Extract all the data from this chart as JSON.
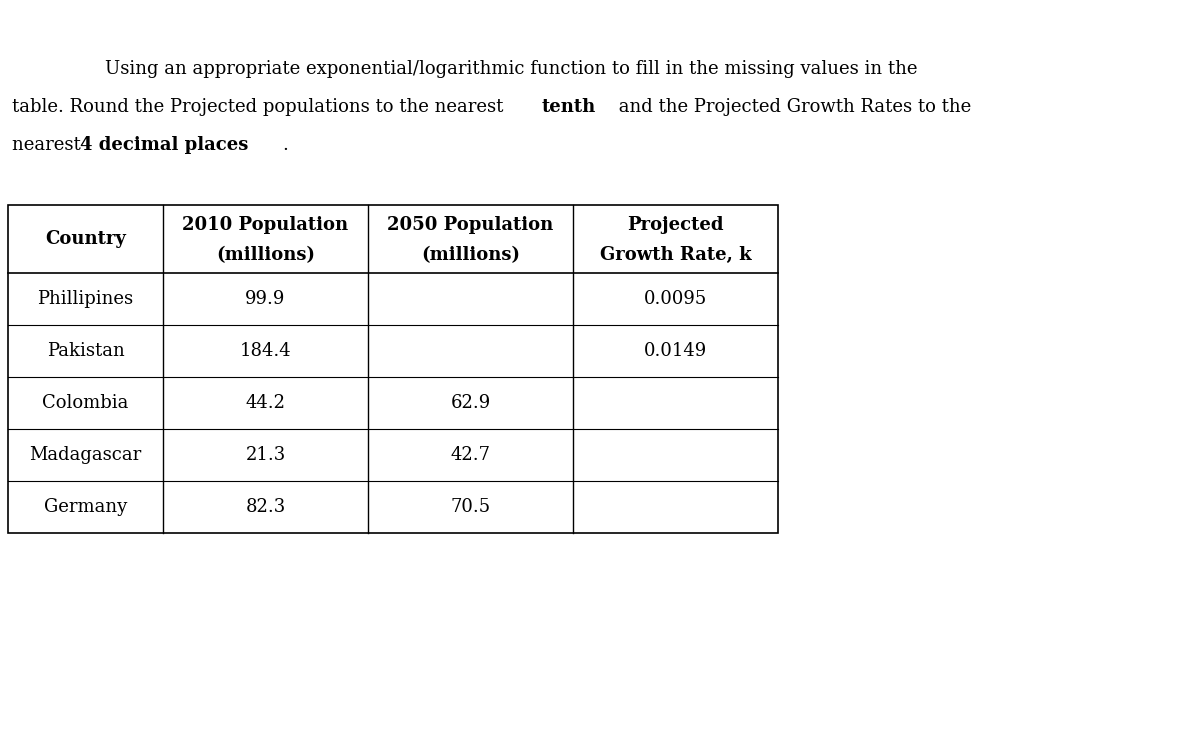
{
  "title_line1": "Using an appropriate exponential/logarithmic function to fill in the missing values in the",
  "title_line2": "table. Round the Projected populations to the nearest",
  "title_bold1": "tenth",
  "title_line2b": " and the Projected Growth Rates to the",
  "title_line3": "nearest",
  "title_bold2": "4 decimal places",
  "title_line3b": ".",
  "col_headers": [
    "Country",
    "2010 Population\n(millions)",
    "2050 Population\n(millions)",
    "Projected\nGrowth Rate, k"
  ],
  "rows": [
    [
      "Phillipines",
      "99.9",
      "",
      "0.0095"
    ],
    [
      "Pakistan",
      "184.4",
      "",
      "0.0149"
    ],
    [
      "Colombia",
      "44.2",
      "62.9",
      ""
    ],
    [
      "Madagascar",
      "21.3",
      "42.7",
      ""
    ],
    [
      "Germany",
      "82.3",
      "70.5",
      ""
    ]
  ],
  "bg_color": "#ffffff",
  "text_color": "#000000",
  "font_size_body": 13,
  "font_size_header": 13,
  "font_size_desc": 13
}
